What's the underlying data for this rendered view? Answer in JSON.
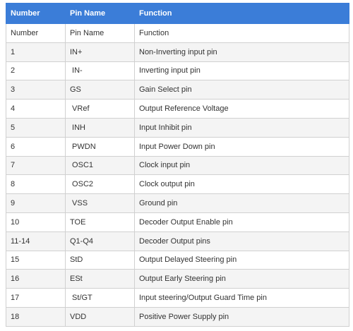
{
  "table": {
    "header": [
      "Number",
      "Pin Name",
      "Function"
    ],
    "rows": [
      [
        "Number",
        "Pin Name",
        "Function"
      ],
      [
        "1",
        "IN+",
        "Non-Inverting input pin"
      ],
      [
        "2",
        " IN-",
        "Inverting input pin"
      ],
      [
        "3",
        "GS",
        "Gain Select pin"
      ],
      [
        "4",
        " VRef",
        "Output Reference Voltage"
      ],
      [
        "5",
        " INH",
        "Input Inhibit pin"
      ],
      [
        "6",
        " PWDN",
        "Input Power Down pin"
      ],
      [
        "7",
        " OSC1",
        "Clock input pin"
      ],
      [
        "8",
        " OSC2",
        "Clock output pin"
      ],
      [
        "9",
        " VSS",
        "Ground pin"
      ],
      [
        "10",
        "TOE",
        "Decoder Output Enable pin"
      ],
      [
        "11-14",
        "Q1-Q4",
        "Decoder Output pins"
      ],
      [
        "15",
        "StD",
        "Output Delayed Steering pin"
      ],
      [
        "16",
        "ESt",
        "Output Early Steering pin"
      ],
      [
        "17",
        " St/GT",
        "Input steering/Output Guard Time pin"
      ],
      [
        "18",
        "VDD",
        "Positive Power Supply pin"
      ]
    ]
  }
}
